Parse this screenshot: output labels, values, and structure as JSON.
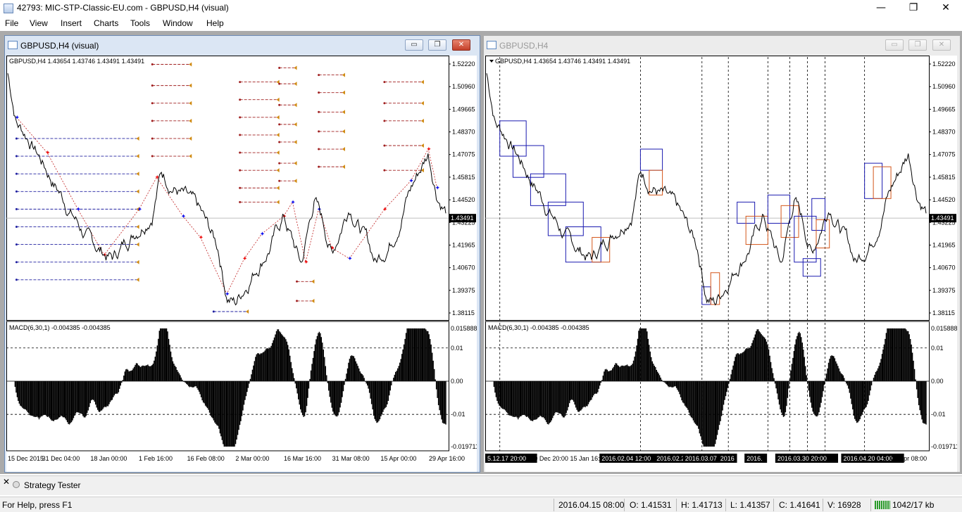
{
  "app": {
    "title": "42793: MIC-STP-Classic-EU.com - GBPUSD,H4 (visual)",
    "min_glyph": "—",
    "max_glyph": "❐",
    "close_glyph": "✕"
  },
  "menu": [
    "File",
    "View",
    "Insert",
    "Charts",
    "Tools",
    "Window",
    "Help"
  ],
  "left_window": {
    "title": "GBPUSD,H4 (visual)",
    "header_text": "GBPUSD,H4  1.43654 1.43746 1.43491 1.43491",
    "price_axis": [
      "1.52220",
      "1.50960",
      "1.49665",
      "1.48370",
      "1.47075",
      "1.45815",
      "1.44520",
      "1.43225",
      "1.41965",
      "1.40670",
      "1.39375",
      "1.38115"
    ],
    "current_price": "1.43491",
    "macd_label": "MACD(6,30,1) -0.004385 -0.004385",
    "macd_axis": [
      "0.015888",
      "0.01",
      "0.00",
      "-0.01",
      "-0.019711"
    ],
    "time_axis": [
      "15 Dec 2015",
      "31 Dec 04:00",
      "18 Jan 00:00",
      "1 Feb 16:00",
      "16 Feb 08:00",
      "2 Mar 00:00",
      "16 Mar 16:00",
      "31 Mar 08:00",
      "15 Apr 00:00",
      "29 Apr 16:00"
    ]
  },
  "right_window": {
    "title": "GBPUSD,H4",
    "header_text": "GBPUSD,H4  1.43654 1.43746 1.43491 1.43491",
    "price_axis": [
      "1.52220",
      "1.50960",
      "1.49665",
      "1.48370",
      "1.47075",
      "1.45815",
      "1.44520",
      "1.43225",
      "1.41965",
      "1.40670",
      "1.39375",
      "1.38115"
    ],
    "current_price": "1.43491",
    "macd_label": "MACD(6,30,1) -0.004385 -0.004385",
    "macd_axis": [
      "0.015888",
      "0.01",
      "0.00",
      "-0.01",
      "-0.019711"
    ],
    "time_axis": [
      "30 Dec 20:00",
      "15 Jan 16:",
      "29 Apr 08:00"
    ],
    "time_highlights": [
      "5.12.17 20:00",
      "2016.02.04 12:00",
      "2016.02.2",
      "2016.03.07",
      "2016",
      "2016.",
      "2016.03.30 20:00",
      "2016.04.20 04:00"
    ]
  },
  "bottom": {
    "tester_label": "Strategy Tester"
  },
  "status": {
    "help": "For Help, press F1",
    "datetime": "2016.04.15 08:00",
    "open": "O: 1.41531",
    "high": "H: 1.41713",
    "low": "L: 1.41357",
    "close": "C: 1.41641",
    "volume": "V: 16928",
    "traffic": "1042/17 kb"
  },
  "colors": {
    "buy_marker": "#1010ee",
    "sell_marker": "#ee1010",
    "order_line_blue": "#2020a0",
    "order_line_red": "#a02020",
    "arrow_orange": "#d08a10",
    "box_blue": "#1a1ab0",
    "box_orange": "#d4561a"
  }
}
